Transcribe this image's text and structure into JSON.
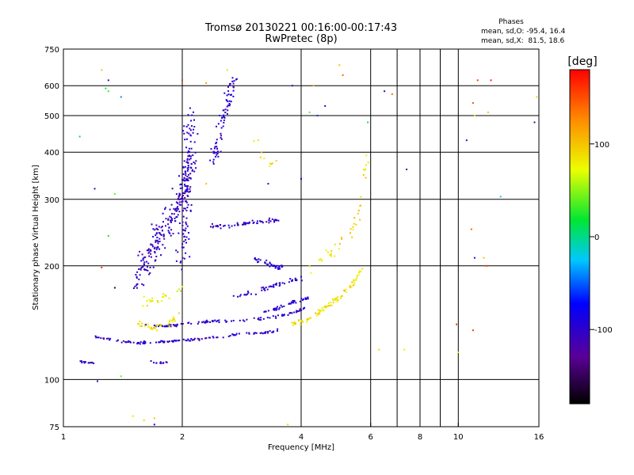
{
  "chart_data": {
    "type": "scatter",
    "title": "Tromsø 20130221 00:16:00-00:17:43",
    "subtitle": "RwPretec (8p)",
    "xlabel": "Frequency [MHz]",
    "ylabel": "Stationary phase Virtual Height [km]",
    "x_scale": "log",
    "y_scale": "log",
    "xlim": [
      1,
      16
    ],
    "ylim": [
      75,
      750
    ],
    "x_ticks": [
      1,
      2,
      4,
      6,
      8,
      10,
      16
    ],
    "x_tick_labels": [
      "1",
      "2",
      "4",
      "6",
      "8",
      "10",
      "16"
    ],
    "x_gridlines": [
      2,
      4,
      6,
      7,
      8,
      9,
      10,
      16
    ],
    "y_ticks": [
      75,
      100,
      200,
      300,
      400,
      500,
      600,
      750
    ],
    "y_tick_labels": [
      "75",
      "100",
      "200",
      "300",
      "400",
      "500",
      "600",
      "750"
    ],
    "grid": true,
    "stats": {
      "title": "Phases",
      "line1": "mean, sd,O: -95.4, 16.4",
      "line2": "mean, sd,X:  81.5, 18.6"
    },
    "colorbar": {
      "label": "[deg]",
      "range": [
        -180,
        180
      ],
      "ticks": [
        100,
        0,
        -100
      ],
      "tick_labels": [
        "100",
        "0",
        "-100"
      ]
    },
    "traces": [
      {
        "name": "",
        "phase": -100,
        "f": [
          1.2,
          1.35,
          1.5,
          1.7,
          1.85,
          2.0,
          2.2,
          2.5,
          2.8,
          3.2,
          3.5
        ],
        "h": [
          130,
          127,
          125,
          125,
          126,
          127,
          128,
          130,
          132,
          133,
          135
        ],
        "n": 120,
        "spread": 0.012
      },
      {
        "name": "",
        "phase": -100,
        "f": [
          1.6,
          1.8,
          2.0,
          2.3,
          2.6,
          3.0,
          3.4,
          3.8,
          4.1
        ],
        "h": [
          140,
          138,
          140,
          142,
          143,
          144,
          146,
          150,
          155
        ],
        "n": 100,
        "spread": 0.012
      },
      {
        "name": "",
        "phase": -100,
        "f": [
          1.1,
          1.15,
          1.2
        ],
        "h": [
          112,
          111,
          111
        ],
        "n": 14,
        "spread": 0.01
      },
      {
        "name": "",
        "phase": -100,
        "f": [
          1.65,
          1.75,
          1.85
        ],
        "h": [
          112,
          110,
          112
        ],
        "n": 12,
        "spread": 0.01
      },
      {
        "name": "",
        "phase": -105,
        "f": [
          1.55,
          1.7,
          1.85,
          2.0,
          2.1
        ],
        "h": [
          180,
          230,
          260,
          300,
          380
        ],
        "n": 220,
        "spread": 0.11
      },
      {
        "name": "",
        "phase": -100,
        "f": [
          2.0,
          2.05,
          2.1
        ],
        "h": [
          200,
          320,
          500
        ],
        "n": 120,
        "spread": 0.09
      },
      {
        "name": "",
        "phase": -100,
        "f": [
          2.4,
          2.55,
          2.7
        ],
        "h": [
          380,
          500,
          620
        ],
        "n": 80,
        "spread": 0.06
      },
      {
        "name": "",
        "phase": -100,
        "f": [
          2.35,
          2.6,
          2.9,
          3.2,
          3.5
        ],
        "h": [
          255,
          255,
          258,
          262,
          265
        ],
        "n": 60,
        "spread": 0.02
      },
      {
        "name": "",
        "phase": -100,
        "f": [
          2.7,
          3.0,
          3.3,
          3.6,
          4.0
        ],
        "h": [
          165,
          170,
          175,
          180,
          185
        ],
        "n": 50,
        "spread": 0.025
      },
      {
        "name": "",
        "phase": -95,
        "f": [
          3.0,
          3.2,
          3.4,
          3.6
        ],
        "h": [
          210,
          205,
          200,
          198
        ],
        "n": 35,
        "spread": 0.02
      },
      {
        "name": "",
        "phase": -100,
        "f": [
          3.2,
          3.5,
          3.8,
          4.2
        ],
        "h": [
          150,
          155,
          160,
          165
        ],
        "n": 40,
        "spread": 0.02
      },
      {
        "name": "",
        "phase": 85,
        "f": [
          3.8,
          4.2,
          4.6,
          5.0,
          5.4,
          5.7
        ],
        "h": [
          140,
          145,
          155,
          165,
          180,
          195
        ],
        "n": 90,
        "spread": 0.025
      },
      {
        "name": "",
        "phase": 80,
        "f": [
          1.55,
          1.7,
          1.85,
          2.0
        ],
        "h": [
          140,
          137,
          140,
          150
        ],
        "n": 40,
        "spread": 0.03
      },
      {
        "name": "",
        "phase": 80,
        "f": [
          1.6,
          1.8,
          2.0
        ],
        "h": [
          160,
          165,
          175
        ],
        "n": 25,
        "spread": 0.04
      },
      {
        "name": "",
        "phase": 90,
        "f": [
          4.2,
          4.6,
          5.0,
          5.5
        ],
        "h": [
          200,
          210,
          230,
          260
        ],
        "n": 25,
        "spread": 0.06
      },
      {
        "name": "",
        "phase": 90,
        "f": [
          5.5,
          5.7,
          5.9
        ],
        "h": [
          250,
          320,
          400
        ],
        "n": 15,
        "spread": 0.04
      },
      {
        "name": "",
        "phase": 90,
        "f": [
          3.0,
          3.2,
          3.5
        ],
        "h": [
          440,
          400,
          360
        ],
        "n": 10,
        "spread": 0.05
      }
    ],
    "scatter_points": [
      {
        "f": 1.1,
        "h": 440,
        "phase": 10
      },
      {
        "f": 1.25,
        "h": 660,
        "phase": 100
      },
      {
        "f": 1.3,
        "h": 620,
        "phase": -120
      },
      {
        "f": 1.3,
        "h": 580,
        "phase": 30
      },
      {
        "f": 1.4,
        "h": 560,
        "phase": -40
      },
      {
        "f": 1.2,
        "h": 320,
        "phase": -110
      },
      {
        "f": 1.35,
        "h": 310,
        "phase": 40
      },
      {
        "f": 1.3,
        "h": 240,
        "phase": 20
      },
      {
        "f": 1.25,
        "h": 198,
        "phase": 160
      },
      {
        "f": 1.35,
        "h": 175,
        "phase": -150
      },
      {
        "f": 1.5,
        "h": 80,
        "phase": 60
      },
      {
        "f": 1.6,
        "h": 78,
        "phase": 90
      },
      {
        "f": 1.7,
        "h": 79,
        "phase": 100
      },
      {
        "f": 1.7,
        "h": 76,
        "phase": -90
      },
      {
        "f": 1.4,
        "h": 102,
        "phase": 40
      },
      {
        "f": 1.22,
        "h": 99,
        "phase": -110
      },
      {
        "f": 2.6,
        "h": 660,
        "phase": 60
      },
      {
        "f": 2.3,
        "h": 610,
        "phase": 120
      },
      {
        "f": 2.0,
        "h": 620,
        "phase": 160
      },
      {
        "f": 3.8,
        "h": 600,
        "phase": -110
      },
      {
        "f": 4.3,
        "h": 600,
        "phase": 120
      },
      {
        "f": 4.6,
        "h": 530,
        "phase": -90
      },
      {
        "f": 4.4,
        "h": 500,
        "phase": -60
      },
      {
        "f": 4.2,
        "h": 510,
        "phase": 40
      },
      {
        "f": 4.0,
        "h": 340,
        "phase": -100
      },
      {
        "f": 5.0,
        "h": 680,
        "phase": 100
      },
      {
        "f": 5.1,
        "h": 640,
        "phase": 140
      },
      {
        "f": 5.9,
        "h": 480,
        "phase": 20
      },
      {
        "f": 6.5,
        "h": 580,
        "phase": -110
      },
      {
        "f": 6.8,
        "h": 570,
        "phase": 140
      },
      {
        "f": 7.4,
        "h": 360,
        "phase": -120
      },
      {
        "f": 7.3,
        "h": 120,
        "phase": 80
      },
      {
        "f": 6.3,
        "h": 120,
        "phase": 90
      },
      {
        "f": 9.9,
        "h": 140,
        "phase": 160
      },
      {
        "f": 10.0,
        "h": 118,
        "phase": 90
      },
      {
        "f": 10.5,
        "h": 430,
        "phase": -110
      },
      {
        "f": 10.9,
        "h": 540,
        "phase": 150
      },
      {
        "f": 11.0,
        "h": 500,
        "phase": 90
      },
      {
        "f": 11.2,
        "h": 620,
        "phase": 160
      },
      {
        "f": 12.1,
        "h": 620,
        "phase": 170
      },
      {
        "f": 11.9,
        "h": 510,
        "phase": 100
      },
      {
        "f": 11.8,
        "h": 200,
        "phase": 160
      },
      {
        "f": 11.6,
        "h": 210,
        "phase": 100
      },
      {
        "f": 10.8,
        "h": 250,
        "phase": 140
      },
      {
        "f": 11.0,
        "h": 210,
        "phase": -110
      },
      {
        "f": 12.8,
        "h": 305,
        "phase": -20
      },
      {
        "f": 15.6,
        "h": 480,
        "phase": -120
      },
      {
        "f": 15.8,
        "h": 560,
        "phase": 90
      },
      {
        "f": 10.9,
        "h": 135,
        "phase": 160
      },
      {
        "f": 3.7,
        "h": 76,
        "phase": 90
      },
      {
        "f": 3.3,
        "h": 330,
        "phase": -110
      },
      {
        "f": 2.3,
        "h": 330,
        "phase": 100
      },
      {
        "f": 1.28,
        "h": 590,
        "phase": 20
      }
    ]
  }
}
